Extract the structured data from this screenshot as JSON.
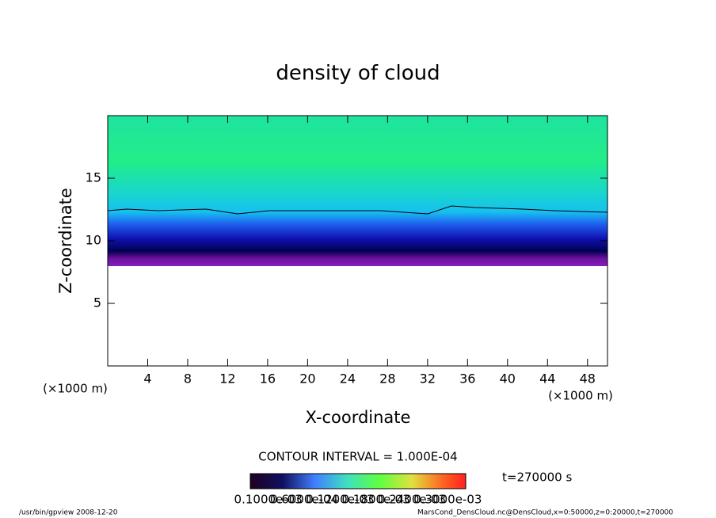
{
  "chart_data": {
    "type": "contour",
    "title": "density of cloud",
    "xlabel": "X-coordinate",
    "ylabel": "Z-coordinate",
    "x_unit": "(×1000 m)",
    "y_unit": "(×1000 m)",
    "xlim": [
      0,
      50
    ],
    "ylim": [
      0,
      20
    ],
    "xticks": [
      4,
      8,
      12,
      16,
      20,
      24,
      28,
      32,
      36,
      40,
      44,
      48
    ],
    "yticks": [
      5,
      10,
      15
    ],
    "contour_interval": "CONTOUR INTERVAL = 1.000E-04",
    "time_label": "t=270000 s",
    "colorbar_labels": [
      "0.1000e-03",
      "0.6000e-04",
      "0.1200e-03",
      "0.1800e-03",
      "0.2400e-03",
      "0.3000e-03"
    ],
    "footer_left": "/usr/bin/gpview   2008-12-20",
    "footer_right": "MarsCond_DensCloud.nc@DensCloud,x=0:50000,z=0:20000,t=270000"
  }
}
